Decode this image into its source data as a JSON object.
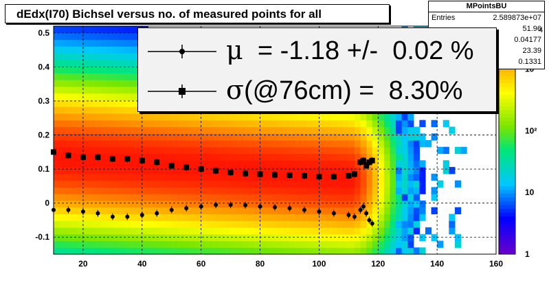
{
  "chart_data": {
    "type": "heatmap",
    "title": "dEdx(I70) Bichsel versus no. of measured points for all",
    "xlabel": "",
    "ylabel": "",
    "xlim": [
      10,
      160
    ],
    "ylim": [
      -0.15,
      0.52
    ],
    "grid": true,
    "x_ticks": [
      "20",
      "40",
      "60",
      "80",
      "100",
      "120",
      "140",
      "160"
    ],
    "y_ticks": [
      "-0.1",
      "0",
      "0.1",
      "0.2",
      "0.3",
      "0.4",
      "0.5"
    ],
    "colorbar": {
      "scale": "log",
      "range": [
        1,
        5000
      ],
      "tick_labels": [
        "1",
        "10",
        "10²",
        "10³"
      ]
    },
    "series": [
      {
        "name": "μ",
        "marker": "circle",
        "x": [
          10,
          15,
          20,
          25,
          30,
          35,
          40,
          45,
          50,
          55,
          60,
          65,
          70,
          75,
          80,
          85,
          90,
          95,
          100,
          105,
          110,
          112,
          114,
          115,
          116,
          117,
          118
        ],
        "values": [
          -0.02,
          -0.02,
          -0.025,
          -0.03,
          -0.04,
          -0.04,
          -0.035,
          -0.03,
          -0.02,
          -0.015,
          -0.01,
          -0.005,
          -0.005,
          -0.006,
          -0.01,
          -0.012,
          -0.015,
          -0.02,
          -0.025,
          -0.03,
          -0.035,
          -0.04,
          -0.02,
          -0.01,
          -0.03,
          -0.05,
          -0.06
        ]
      },
      {
        "name": "σ(@76cm)",
        "marker": "square",
        "x": [
          10,
          15,
          20,
          25,
          30,
          35,
          40,
          45,
          50,
          55,
          60,
          65,
          70,
          75,
          80,
          85,
          90,
          95,
          100,
          105,
          110,
          112,
          114,
          115,
          116,
          117,
          118
        ],
        "values": [
          0.15,
          0.14,
          0.135,
          0.135,
          0.13,
          0.13,
          0.125,
          0.12,
          0.11,
          0.105,
          0.1,
          0.095,
          0.09,
          0.087,
          0.085,
          0.083,
          0.082,
          0.08,
          0.078,
          0.078,
          0.08,
          0.085,
          0.12,
          0.125,
          0.11,
          0.12,
          0.125
        ]
      }
    ]
  },
  "stats_box": {
    "title": "MPointsBU",
    "entries_label": "Entries",
    "entries_value": "2.589873e+07",
    "values": [
      "51.96",
      "0.04177",
      "23.39",
      "0.1331"
    ],
    "clipped_glyph": "4"
  },
  "legend": {
    "mu_symbol": "μ",
    "mu_text": "  = -1.18 +/-  0.02 %",
    "sigma_symbol": "σ",
    "sigma_text": "(@76cm) =  8.30%"
  }
}
